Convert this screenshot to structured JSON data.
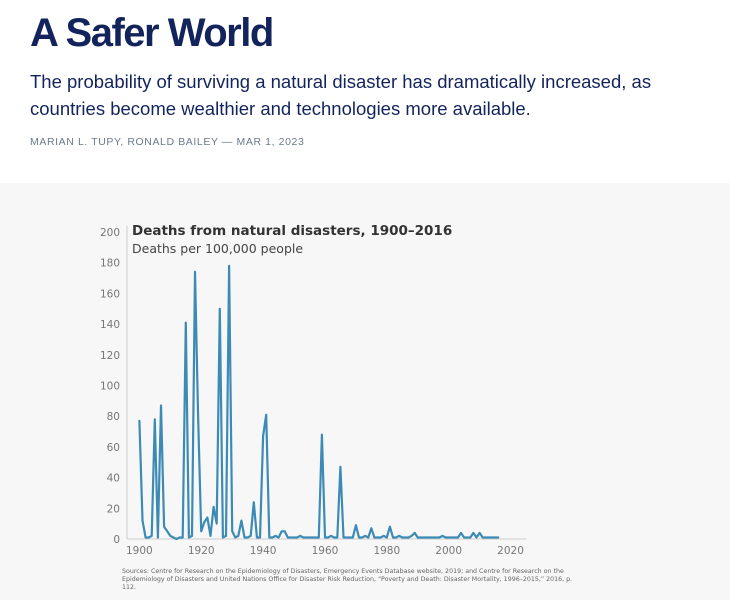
{
  "article": {
    "title": "A Safer World",
    "subtitle": "The probability of surviving a natural disaster has dramatically increased, as countries become wealthier and technologies more available.",
    "byline": "MARIAN L. TUPY, RONALD BAILEY — MAR 1, 2023"
  },
  "colors": {
    "title": "#13245c",
    "subtitle": "#13245c",
    "byline": "#6b7a8c",
    "figure_bg": "#f7f7f7",
    "line": "#3d8bb5",
    "axis": "#cccccc"
  },
  "chart_data": {
    "type": "line",
    "title": "Deaths from natural disasters, 1900–2016",
    "subtitle": "Deaths per 100,000 people",
    "xlim": [
      1896,
      2025
    ],
    "ylim": [
      0,
      200
    ],
    "x_ticks": [
      1900,
      1920,
      1940,
      1960,
      1980,
      2000,
      2020
    ],
    "y_ticks": [
      0,
      20,
      40,
      60,
      80,
      100,
      120,
      140,
      160,
      180,
      200
    ],
    "grid": false,
    "series": [
      {
        "x": [
          1900,
          1901,
          1902,
          1903,
          1904,
          1905,
          1906,
          1907,
          1908,
          1909,
          1910,
          1911,
          1912,
          1913,
          1914,
          1915,
          1916,
          1917,
          1918,
          1919,
          1920,
          1921,
          1922,
          1923,
          1924,
          1925,
          1926,
          1927,
          1928,
          1929,
          1930,
          1931,
          1932,
          1933,
          1934,
          1935,
          1936,
          1937,
          1938,
          1939,
          1940,
          1941,
          1942,
          1943,
          1944,
          1945,
          1946,
          1947,
          1948,
          1949,
          1950,
          1951,
          1952,
          1953,
          1954,
          1955,
          1956,
          1957,
          1958,
          1959,
          1960,
          1961,
          1962,
          1963,
          1964,
          1965,
          1966,
          1967,
          1968,
          1969,
          1970,
          1971,
          1972,
          1973,
          1974,
          1975,
          1976,
          1977,
          1978,
          1979,
          1980,
          1981,
          1982,
          1983,
          1984,
          1985,
          1986,
          1987,
          1988,
          1989,
          1990,
          1991,
          1992,
          1993,
          1994,
          1995,
          1996,
          1997,
          1998,
          1999,
          2000,
          2001,
          2002,
          2003,
          2004,
          2005,
          2006,
          2007,
          2008,
          2009,
          2010,
          2011,
          2012,
          2013,
          2014,
          2015,
          2016
        ],
        "y": [
          77,
          12,
          1,
          1,
          2,
          78,
          1,
          87,
          8,
          5,
          2,
          1,
          0,
          1,
          1,
          141,
          1,
          2,
          174,
          80,
          5,
          11,
          14,
          2,
          21,
          10,
          150,
          1,
          2,
          178,
          5,
          1,
          2,
          12,
          1,
          1,
          2,
          24,
          1,
          1,
          67,
          81,
          1,
          1,
          2,
          1,
          5,
          5,
          1,
          1,
          1,
          1,
          2,
          1,
          1,
          1,
          1,
          1,
          1,
          68,
          1,
          1,
          2,
          1,
          1,
          47,
          1,
          1,
          1,
          1,
          9,
          1,
          1,
          2,
          1,
          7,
          1,
          1,
          1,
          2,
          1,
          8,
          1,
          1,
          2,
          1,
          1,
          1,
          2,
          4,
          1,
          1,
          1,
          1,
          1,
          1,
          1,
          1,
          2,
          1,
          1,
          1,
          1,
          1,
          4,
          1,
          1,
          1,
          4,
          1,
          4,
          1,
          1,
          1,
          1,
          1,
          1
        ]
      }
    ],
    "sources": "Sources: Centre for Research on the Epidemiology of Disasters, Emergency Events Database website, 2019; and Centre for Research on the Epidemiology of Disasters and United Nations Office for Disaster Risk Reduction, “Poverty and Death: Disaster Mortality, 1996–2015,” 2016, p. 112."
  }
}
